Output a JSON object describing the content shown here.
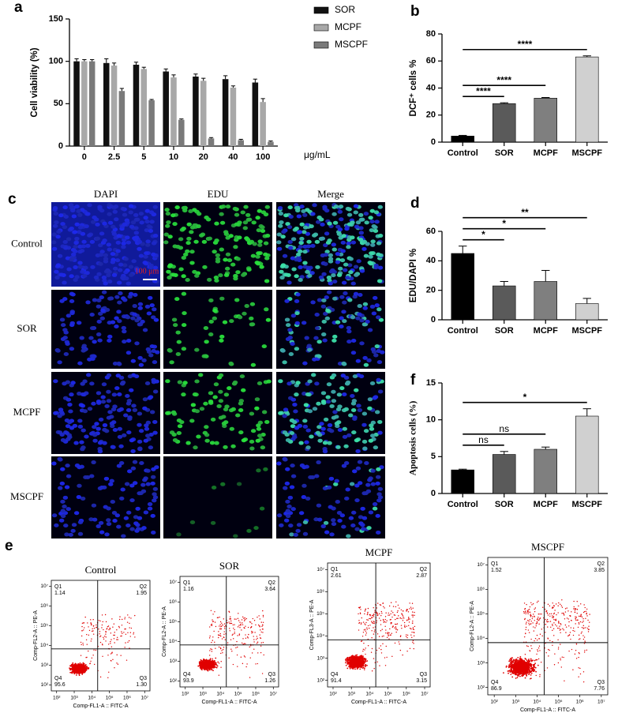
{
  "chart_data": [
    {
      "panel": "a",
      "type": "bar",
      "ylabel": "Cell viability (%)",
      "xlabel": "μg/mL",
      "categories": [
        "0",
        "2.5",
        "5",
        "10",
        "20",
        "40",
        "100"
      ],
      "series": [
        {
          "name": "SOR",
          "color": "#111111",
          "values": [
            100,
            98,
            96,
            88,
            82,
            79,
            75
          ],
          "errors": [
            3,
            5,
            3,
            3,
            3,
            4,
            4
          ]
        },
        {
          "name": "MCPF",
          "color": "#a8a8a8",
          "values": [
            100,
            95,
            91,
            81,
            77,
            69,
            52
          ],
          "errors": [
            2,
            3,
            2,
            3,
            3,
            2,
            4
          ]
        },
        {
          "name": "MSCPF",
          "color": "#7a7a7a",
          "values": [
            100,
            65,
            54,
            31,
            9,
            7,
            5
          ],
          "errors": [
            2,
            3,
            1,
            1,
            1,
            1,
            1
          ]
        }
      ],
      "ylim": [
        0,
        150
      ],
      "yticks": [
        0,
        50,
        100,
        150
      ],
      "legend": "upper right"
    },
    {
      "panel": "b",
      "type": "bar",
      "ylabel": "DCF⁺ cells %",
      "categories": [
        "Control",
        "SOR",
        "MCPF",
        "MSCPF"
      ],
      "values": [
        4.5,
        28.5,
        32.5,
        63
      ],
      "errors": [
        0.5,
        0.6,
        0.5,
        0.8
      ],
      "colors": [
        "#000000",
        "#5a5a5a",
        "#7f7f7f",
        "#d0d0d0"
      ],
      "ylim": [
        0,
        80
      ],
      "yticks": [
        0,
        20,
        40,
        60,
        80
      ],
      "annotations": [
        "****",
        "****",
        "****"
      ]
    },
    {
      "panel": "d",
      "type": "bar",
      "ylabel": "EDU/DAPI %",
      "categories": [
        "Control",
        "SOR",
        "MCPF",
        "MSCPF"
      ],
      "values": [
        45,
        23,
        26,
        11
      ],
      "errors": [
        5,
        3,
        7.5,
        3.5
      ],
      "colors": [
        "#000000",
        "#5a5a5a",
        "#7f7f7f",
        "#d0d0d0"
      ],
      "ylim": [
        0,
        60
      ],
      "yticks": [
        0,
        20,
        40,
        60
      ],
      "annotations": [
        "*",
        "*",
        "**"
      ]
    },
    {
      "panel": "f",
      "type": "bar",
      "ylabel": "Apoptosis cells (%)",
      "categories": [
        "Control",
        "SOR",
        "MCPF",
        "MSCPF"
      ],
      "values": [
        3.2,
        5.3,
        6.0,
        10.5
      ],
      "errors": [
        0.1,
        0.4,
        0.3,
        1.0
      ],
      "colors": [
        "#000000",
        "#5a5a5a",
        "#7f7f7f",
        "#d0d0d0"
      ],
      "ylim": [
        0,
        15
      ],
      "yticks": [
        0,
        5,
        10,
        15
      ],
      "annotations": [
        "ns",
        "ns",
        "*"
      ]
    }
  ],
  "microscopy": {
    "panel": "c",
    "columns": [
      "DAPI",
      "EDU",
      "Merge"
    ],
    "rows": [
      "Control",
      "SOR",
      "MCPF",
      "MSCPF"
    ],
    "scale_bar": "100 μm"
  },
  "flow_cytometry": {
    "panel": "e",
    "log": true,
    "xlabel": "Comp-FL1-A :: FITC-A",
    "lim": [
      50,
      20000000
    ],
    "ticks": [
      {
        "value": 100,
        "label": "10²"
      },
      {
        "value": 1000,
        "label": "10³"
      },
      {
        "value": 10000,
        "label": "10⁴"
      },
      {
        "value": 100000,
        "label": "10⁵"
      },
      {
        "value": 1000000,
        "label": "10⁶"
      },
      {
        "value": 10000000,
        "label": "10⁷"
      }
    ],
    "plots": [
      {
        "title": "Control",
        "ylabel": "Comp-FL2-A :: PE-A",
        "quadrants": [
          {
            "name": "Q1",
            "value": 1.14
          },
          {
            "name": "Q2",
            "value": 1.95
          },
          {
            "name": "Q3",
            "value": 1.3,
            "label": "1.30"
          },
          {
            "name": "Q4",
            "value": 95.6
          }
        ]
      },
      {
        "title": "SOR",
        "ylabel": "Comp-FL2-A :: PE-A",
        "quadrants": [
          {
            "name": "Q1",
            "value": 1.16
          },
          {
            "name": "Q2",
            "value": 3.64
          },
          {
            "name": "Q3",
            "value": 1.26
          },
          {
            "name": "Q4",
            "value": 93.9
          }
        ]
      },
      {
        "title": "MCPF",
        "ylabel": "Comp-FL3-A :: PE-A",
        "quadrants": [
          {
            "name": "Q1",
            "value": 2.61
          },
          {
            "name": "Q2",
            "value": 2.87
          },
          {
            "name": "Q3",
            "value": 3.15
          },
          {
            "name": "Q4",
            "value": 91.4
          }
        ]
      },
      {
        "title": "MSCPF",
        "ylabel": "Comp-FL2-A :: PE-A",
        "quadrants": [
          {
            "name": "Q1",
            "value": 1.52
          },
          {
            "name": "Q2",
            "value": 3.85
          },
          {
            "name": "Q3",
            "value": 7.76
          },
          {
            "name": "Q4",
            "value": 86.9
          }
        ]
      }
    ]
  }
}
